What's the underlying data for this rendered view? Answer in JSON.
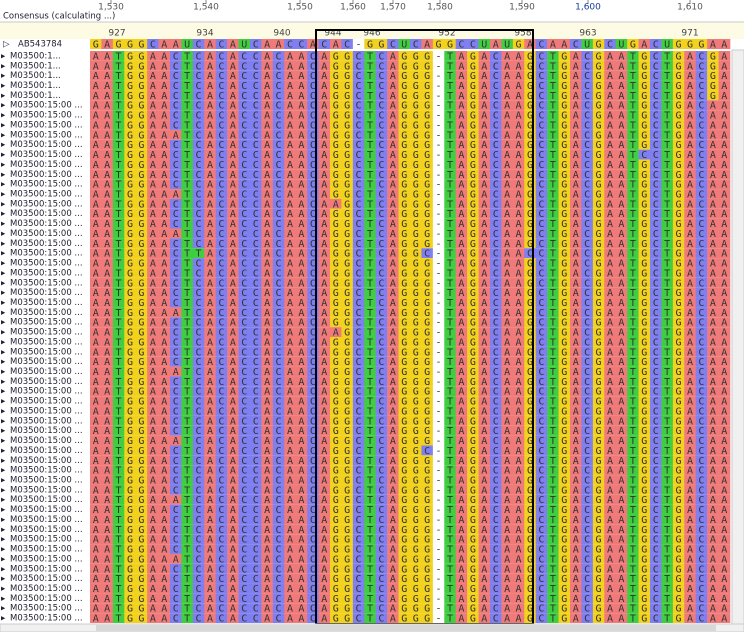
{
  "ruler_top": [
    "1,530",
    "1,540",
    "1,550",
    "1,560",
    "1,570",
    "1,580",
    "1,590",
    "1,600",
    "1,610"
  ],
  "ruler_positions": [
    "927",
    "934",
    "940",
    "944",
    "946",
    "952",
    "958",
    "963",
    "971"
  ],
  "consensus_label": "Consensus (calculating ...)",
  "reference": {
    "name": "AB543784",
    "seq": "GAGGGCAAUCACAUCAACCACAC-GGCUCAGGCCUAUGACAACUGCUGACUGGGAA"
  },
  "base_colors": {
    "A": "#f07a7a",
    "C": "#7f7ff2",
    "G": "#f2d21c",
    "T": "#3fce3f",
    "U": "#3fce3f",
    "-": "#ffffff"
  },
  "rows": [
    {
      "name": "M03500:1...",
      "seq": "AATGGAACTCACACCACAACAGGCTCAGGG-TAGACAAGCTGACGAATGCTGACGA"
    },
    {
      "name": "M03500:1...",
      "seq": "AATGGAACTCACACCACAACAGGCTCAGGG-TAGACAAGCTGACGAATGCTGACGA"
    },
    {
      "name": "M03500:1...",
      "seq": "AATGGAACTCACACCACAACAGGCTCAGGG-TAGACAAGCTGACGAATGCTGACGA"
    },
    {
      "name": "M03500:1...",
      "seq": "AATGGAACTCACACCACAACAGGCTCAGGG-TAGACAAGCTGACGAATGCTGACGA"
    },
    {
      "name": "M03500:1...",
      "seq": "AATGGAACTCACACCACAACAGGCTCAGGG-TAGACAAGCTGACGAATGCTGACGA"
    },
    {
      "name": "M03500:15:00 ...",
      "seq": "AATGGAACTCACACCACAACAGGCTCAGGG-TAGACAAGCTGACGAATGCTGACAA"
    },
    {
      "name": "M03500:15:00 ...",
      "seq": "AATGGAACTCACACCACAACAGGCTCAGGG-TAGACAAGCTGACGAATGCTGACAA"
    },
    {
      "name": "M03500:15:00 ...",
      "seq": "AATGGAACTCACACCACAACAGGCTCAGGG-TAGACAAGCTGACGAATGCTGACAA"
    },
    {
      "name": "M03500:15:00 ...",
      "seq": "AATGGAAATCACACCACAACAGGCTCAGGG-TAGACAAGCTGACGAATGCTGACAA"
    },
    {
      "name": "M03500:15:00 ...",
      "seq": "AATGGAACTCACACCACAACAGGCTCAGGG-TAGACAAGCTGACGAATGCTGACAA"
    },
    {
      "name": "M03500:15:00 ...",
      "seq": "AATGGAACTCACACCACAACAGGCTCAGGG-TAGACAAGCTGACGAATCCTGACAA"
    },
    {
      "name": "M03500:15:00 ...",
      "seq": "AATGGAACTCACACCACAACAGGCTCAGGG-TAGACAAGCTGACGAATGCTGACAA"
    },
    {
      "name": "M03500:15:00 ...",
      "seq": "AATGGAACTCACACCACAACAGGCTCAGGG-TAGACAAGCTGACGAATGCTGACAA"
    },
    {
      "name": "M03500:15:00 ...",
      "seq": "AATGGAACTCACACCACAACAGGCTCAGGG-TAGACAAGCTGACGAATGCTGACAA"
    },
    {
      "name": "M03500:15:00 ...",
      "seq": "AATGGAAATCACACCACAACAGGCTCAGGG-TAGACAAGCTGACGAATGCTGACAA"
    },
    {
      "name": "M03500:15:00 ...",
      "seq": "AATGGAACTCACACCACAACAAGCTCAGGG-TAGACAAGCTGACGAATGCTGACAA"
    },
    {
      "name": "M03500:15:00 ...",
      "seq": "AATGGAACTCACACCACAACAGGCTCAGGG-TAGACAAGCTGACGAATGCTGACAA"
    },
    {
      "name": "M03500:15:00 ...",
      "seq": "AATGGAACTCACACCACAACAGGCTCAGGG-TAGACAAGCTGACGAATGCTGACAA"
    },
    {
      "name": "M03500:15:00 ...",
      "seq": "AATGGAAATCACACCACAACAGGCTCAGGG-TAGACAAGCTGACGAATGCTGACAA"
    },
    {
      "name": "M03500:15:00 ...",
      "seq": "AATGGAACTCACACCACAACAGGCTCAGGG-TAGACAAGCTGACGAATGCTGACAA"
    },
    {
      "name": "M03500:15:00 ...",
      "seq": "AATGGAACTTACACCACAACAGGCTCAGGC-TAGACAACCTGACGAATGCTGACAA"
    },
    {
      "name": "M03500:15:00 ...",
      "seq": "AATGGAACTCACACCACAACAGGCTCAGGG-TAGACAAGCTGACGAATGCTGACAA"
    },
    {
      "name": "M03500:15:00 ...",
      "seq": "AATGGAACTCACACCACAACAGGCTCAGGG-TAGACAAGCTGACGAATGCTGACAA"
    },
    {
      "name": "M03500:15:00 ...",
      "seq": "AATGGAACTCACACCACAACAGGCTCAGGG-TAGACAAGCTGACGAATGCTGACAA"
    },
    {
      "name": "M03500:15:00 ...",
      "seq": "AATGGAACTCACACCACAACAGGCTCAGGG-TAGACAAGCTGACGAATGCTGACAA"
    },
    {
      "name": "M03500:15:00 ...",
      "seq": "AATGGAACTCACACCACAACAGGCTCAGGG-TAGACAAGCTGACGAATGCTGACAA"
    },
    {
      "name": "M03500:15:00 ...",
      "seq": "AATGGAAATCACACCACAACAGGCTCAGGG-TAGACAAGCTGACGAATGCTGACAA"
    },
    {
      "name": "M03500:15:00 ...",
      "seq": "AATGGAACTCACACCACAACAGGCTCAGGG-TAGACAAGCTGACGAATGCTGACAA"
    },
    {
      "name": "M03500:15:00 ...",
      "seq": "AATGGAACTCACACCACAACAAGCTCAGGG-TAGACAAGCTGACGAATGCTGACAA"
    },
    {
      "name": "M03500:15:00 ...",
      "seq": "AATGGAACTCACACCACAACAGGCTCAGGG-TAGACAAGCTGACGAATGCTGACAA"
    },
    {
      "name": "M03500:15:00 ...",
      "seq": "AATGGAACTCACACCACAACAGGCTCAGGG-TAGACAAGCTGACGAATGCTGACAA"
    },
    {
      "name": "M03500:15:00 ...",
      "seq": "AATGGAACTCACACCACAACAGGCTCAGGG-TAGACAAGCTGACGAATGCTGACAA"
    },
    {
      "name": "M03500:15:00 ...",
      "seq": "AATGGAAATCACACCACAACAGGCTCAGGG-TAGACAAGCTGACGAATGCTGACAA"
    },
    {
      "name": "M03500:15:00 ...",
      "seq": "AATGGAACTCACACCACAACAGGCTCAGGG-TAGACAAGCTGACGAATGCTGACAA"
    },
    {
      "name": "M03500:15:00 ...",
      "seq": "AATGGAACTCACACCACAACAGGCTCAGGG-TAGACAAGCTGACGAATGCTGACAA"
    },
    {
      "name": "M03500:15:00 ...",
      "seq": "AATGGAACTCACACCACAACAGGCTCAGGG-TAGACAAGCTGACGAATGCTGACAA"
    },
    {
      "name": "M03500:15:00 ...",
      "seq": "AATGGAACTCACACCACAACAGGCTCAGGG-TAGACAAGCTGACGAATGCTGACAA"
    },
    {
      "name": "M03500:15:00 ...",
      "seq": "AATGGAACTCACACCACAACAGGCTCAGGG-TAGACAAGCTGACGAATGCTGACAA"
    },
    {
      "name": "M03500:15:00 ...",
      "seq": "AATGGAACTCACACCACAACAGGCTCAGGG-TAGACAAGCTGACGAATGCTGACAA"
    },
    {
      "name": "M03500:15:00 ...",
      "seq": "AATGGAAATCACACCACAACAGGCTCAGGG-TAGACAAGCTGACGAATGCTGACAA"
    },
    {
      "name": "M03500:15:00 ...",
      "seq": "AATGGAACTCACACCACAACAGGCTCAGGC-TAGACAAGCTGACGAATGCTGACAA"
    },
    {
      "name": "M03500:15:00 ...",
      "seq": "AATGGAACTCACACCACAACAGGCTCAGGG-TAGACAAGCTGACGAATGCTGACAA"
    },
    {
      "name": "M03500:15:00 ...",
      "seq": "AATGGAACTCACACCACAACAGGCTCAGGG-TAGACAAGCTGACGAATGCTGACAA"
    },
    {
      "name": "M03500:15:00 ...",
      "seq": "AATGGAACTCACACCACAACAGGCTCAGGG-TAGACAAGCTGACGAATGCTGACAA"
    },
    {
      "name": "M03500:15:00 ...",
      "seq": "AATGGAACTCACACCACAACAGGCTCAGGG-TAGACAAGCTGACGAATGCTGACAA"
    },
    {
      "name": "M03500:15:00 ...",
      "seq": "AATGGAAATCACACCACAACAGGCTCAGGG-TAGACAAGCTGACGAATGCTGACAA"
    },
    {
      "name": "M03500:15:00 ...",
      "seq": "AATGGAACTCACACCACAACAGGCTCAGGG-TAGACAAGCTGACGAATGCTGACAA"
    },
    {
      "name": "M03500:15:00 ...",
      "seq": "AATGGAACTCACACCACAACAGGCTCAGGG-TAGACAAGCTGACGAATGCTGACAA"
    },
    {
      "name": "M03500:15:00 ...",
      "seq": "AATGGAACTCACACCACAACAGGCTCAGGG-TAGACAAGCTGACGAATGCTGACAA"
    },
    {
      "name": "M03500:15:00 ...",
      "seq": "AATGGAACTCACACCACAACAGGCTCAGGG-TAGACAAGCTGACGAATGCTGACAA"
    },
    {
      "name": "M03500:15:00 ...",
      "seq": "AATGGAACTCACACCACAACAGGCTCAGGG-TAGACAAGCTGACGAATGCTGACAA"
    },
    {
      "name": "M03500:15:00 ...",
      "seq": "AATGGAAATCACACCACAACAGGCTCAGGG-TAGACAAGCTGACGAATGCTGACAA"
    },
    {
      "name": "M03500:15:00 ...",
      "seq": "AATGGAACTCACACCACAACAGGCTCAGGG-TAGACAAGCTGACGAATGCTGACAA"
    },
    {
      "name": "M03500:15:00 ...",
      "seq": "AATGGAACTCACACCACAACAGGCTCAGGG-TAGACAAGCTGACGAATGCTGACAA"
    },
    {
      "name": "M03500:15:00 ...",
      "seq": "AATGGAACTCACACCACAACAGGCTCAGGG-TAGACAAGCTGACGAATGCTGACAA"
    },
    {
      "name": "M03500:15:00 ...",
      "seq": "AATGGAACTCACACCACAACAGGCTCAGGG-TAGACAAGCTGACGAATGCTGACAA"
    },
    {
      "name": "M03500:15:00 ...",
      "seq": "AATGGAACTCACACCACAACAGGCTCAGGG-TAGACAAGCTGACGAATGCTGACAA"
    },
    {
      "name": "M03500:15:00 ...",
      "seq": "AATGGAACTCACACCACAACAGGCTCAGGG-TAGACAAGCTGACGAATGCTGACAA"
    }
  ]
}
